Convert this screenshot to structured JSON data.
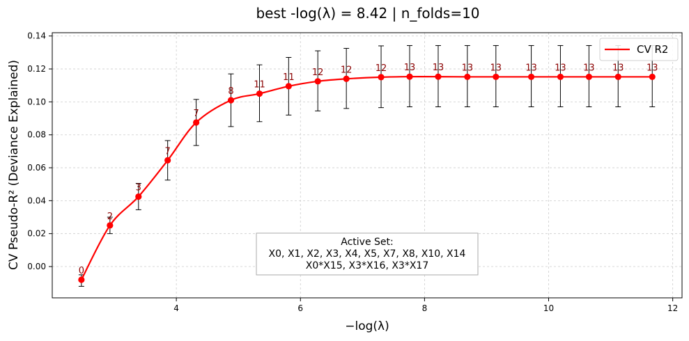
{
  "chart_data": {
    "type": "line",
    "title": "best -log(λ) = 8.42 | n_folds=10",
    "xlabel": "−log(λ)",
    "ylabel": "CV Pseudo-R² (Deviance Explained)",
    "xlim": [
      2.0,
      12.15
    ],
    "ylim": [
      -0.019,
      0.142
    ],
    "xticks": [
      4,
      6,
      8,
      10,
      12
    ],
    "yticks": [
      0.0,
      0.02,
      0.04,
      0.06,
      0.08,
      0.1,
      0.12,
      0.14
    ],
    "ytick_labels": [
      "0.00",
      "0.02",
      "0.04",
      "0.06",
      "0.08",
      "0.10",
      "0.12",
      "0.14"
    ],
    "grid": true,
    "legend": {
      "position": "top-right",
      "entries": [
        {
          "label": "CV R2",
          "color": "#ff0000"
        }
      ]
    },
    "series": [
      {
        "name": "CV R2",
        "color": "#ff0000",
        "x": [
          2.47,
          2.93,
          3.39,
          3.86,
          4.32,
          4.88,
          5.34,
          5.81,
          6.28,
          6.74,
          7.3,
          7.76,
          8.22,
          8.69,
          9.15,
          9.72,
          10.19,
          10.65,
          11.12,
          11.67
        ],
        "y": [
          -0.008,
          0.025,
          0.0425,
          0.0645,
          0.0875,
          0.101,
          0.105,
          0.1095,
          0.1125,
          0.114,
          0.115,
          0.1153,
          0.1153,
          0.1152,
          0.1152,
          0.1152,
          0.1152,
          0.1152,
          0.1152,
          0.1152
        ],
        "err_low": [
          -0.012,
          0.02,
          0.0345,
          0.0525,
          0.0735,
          0.085,
          0.088,
          0.092,
          0.0945,
          0.096,
          0.0965,
          0.097,
          0.097,
          0.097,
          0.097,
          0.097,
          0.097,
          0.097,
          0.097,
          0.097
        ],
        "err_high": [
          -0.005,
          0.03,
          0.0505,
          0.0765,
          0.1015,
          0.117,
          0.1225,
          0.127,
          0.131,
          0.1325,
          0.134,
          0.1342,
          0.1342,
          0.1342,
          0.1342,
          0.1342,
          0.1342,
          0.1342,
          0.1342,
          0.1342
        ],
        "nonzero_counts": [
          "0",
          "2",
          "3",
          "7",
          "7",
          "8",
          "11",
          "11",
          "12",
          "12",
          "12",
          "13",
          "13",
          "13",
          "13",
          "13",
          "13",
          "13",
          "13",
          "13"
        ],
        "count_color": "#8b0000"
      }
    ],
    "annotation": {
      "title": "Active Set:",
      "lines": [
        "X0, X1, X2, X3, X4, X5, X7, X8, X10, X14",
        "X0*X15, X3*X16, X3*X17"
      ]
    }
  }
}
